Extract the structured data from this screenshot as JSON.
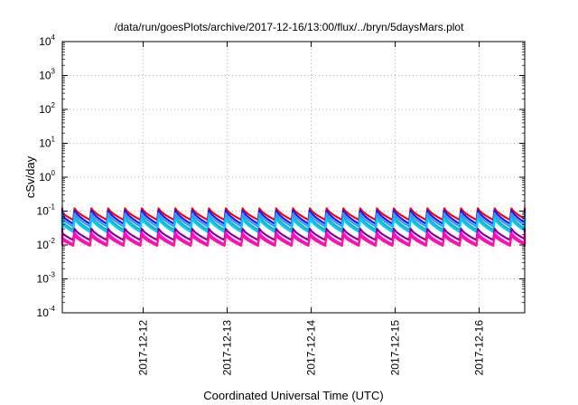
{
  "chart_data": {
    "type": "line",
    "title": "/data/run/goesPlots/archive/2017-12-16/13:00/flux/../bryn/5daysMars.plot",
    "xlabel": "Coordinated Universal Time (UTC)",
    "ylabel": "cSv/day",
    "yscale": "log",
    "ylim": [
      0.0001,
      10000
    ],
    "xlim": [
      "2017-12-11T00:54",
      "2017-12-16T13:00"
    ],
    "grid": true,
    "legend": "none",
    "x_ticks": [
      {
        "value": "2017-12-12T00:00",
        "label": "2017-12-12"
      },
      {
        "value": "2017-12-13T00:00",
        "label": "2017-12-13"
      },
      {
        "value": "2017-12-14T00:00",
        "label": "2017-12-14"
      },
      {
        "value": "2017-12-15T00:00",
        "label": "2017-12-15"
      },
      {
        "value": "2017-12-16T00:00",
        "label": "2017-12-16"
      }
    ],
    "y_ticks": [
      {
        "value": 0.0001,
        "base": "10",
        "exp": "-4"
      },
      {
        "value": 0.001,
        "base": "10",
        "exp": "-3"
      },
      {
        "value": 0.01,
        "base": "10",
        "exp": "-2"
      },
      {
        "value": 0.1,
        "base": "10",
        "exp": "-1"
      },
      {
        "value": 1,
        "base": "10",
        "exp": "0"
      },
      {
        "value": 10,
        "base": "10",
        "exp": "1"
      },
      {
        "value": 100,
        "base": "10",
        "exp": "2"
      },
      {
        "value": 1000,
        "base": "10",
        "exp": "3"
      },
      {
        "value": 10000,
        "base": "10",
        "exp": "4"
      }
    ],
    "pattern": {
      "period_hours": 4.8,
      "note_shape": "sawtooth: sharp rise to peak then decay over each period"
    },
    "series": [
      {
        "color": "#ff0000",
        "peak": 0.12,
        "trough": 0.055
      },
      {
        "color": "#1a1aff",
        "peak": 0.105,
        "trough": 0.042
      },
      {
        "color": "#20b2aa",
        "peak": 0.07,
        "trough": 0.028
      },
      {
        "color": "#3399ff",
        "peak": 0.085,
        "trough": 0.035
      },
      {
        "color": "#00ccff",
        "peak": 0.06,
        "trough": 0.024
      },
      {
        "color": "#8b008b",
        "peak": 0.03,
        "trough": 0.014
      },
      {
        "color": "#ff00ff",
        "peak": 0.023,
        "trough": 0.0105
      },
      {
        "color": "#ff1493",
        "peak": 0.019,
        "trough": 0.0095
      }
    ]
  }
}
